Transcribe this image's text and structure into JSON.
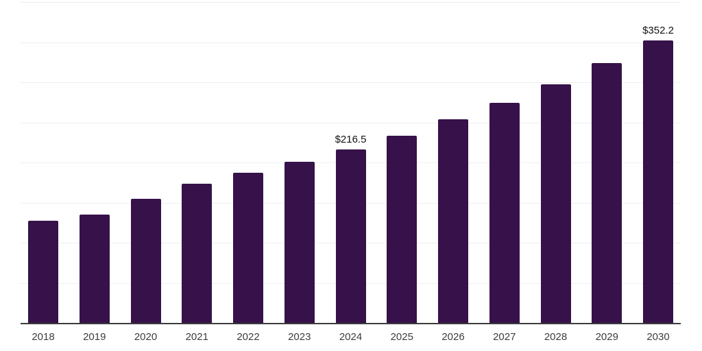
{
  "chart_data": {
    "type": "bar",
    "title": "",
    "xlabel": "",
    "ylabel": "",
    "categories": [
      "2018",
      "2019",
      "2020",
      "2021",
      "2022",
      "2023",
      "2024",
      "2025",
      "2026",
      "2027",
      "2028",
      "2029",
      "2030"
    ],
    "values": [
      127.6,
      135.4,
      155.0,
      173.4,
      187.0,
      200.9,
      216.5,
      233.7,
      253.6,
      274.2,
      297.2,
      324.3,
      352.2
    ],
    "data_labels": [
      null,
      null,
      null,
      null,
      null,
      null,
      "$216.5",
      null,
      null,
      null,
      null,
      null,
      "$352.2"
    ],
    "ylim": [
      0,
      400
    ],
    "ytick_step": 50,
    "grid": true,
    "legend_position": "none",
    "colors": {
      "bar": "#36114A",
      "gridline": "#efefef",
      "axis_line": "#3c3c3c",
      "data_label": "#111111",
      "tick_label": "#3c3c3c",
      "background": "#ffffff"
    }
  }
}
